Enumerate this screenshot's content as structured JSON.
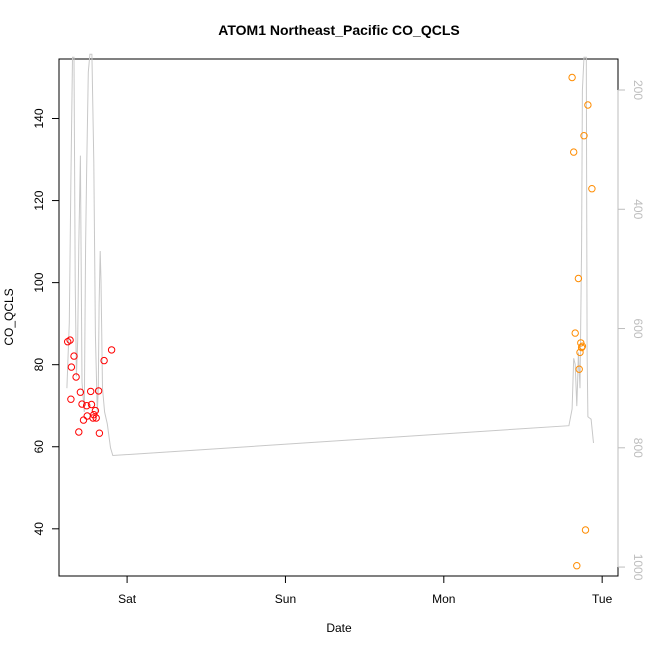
{
  "chart_data": {
    "type": "scatter",
    "title": "ATOM1 Northeast_Pacific CO_QCLS",
    "xlabel": "Date",
    "ylabel": "CO_QCLS",
    "x_tick_labels": [
      "Sat",
      "Sun",
      "Mon",
      "Tue"
    ],
    "x_tick_positions": [
      1.0,
      2.0,
      3.0,
      4.0
    ],
    "xlim": [
      0.57,
      4.1
    ],
    "ylim": [
      28.5,
      154.5
    ],
    "y_ticks": [
      40,
      60,
      80,
      100,
      120,
      140
    ],
    "y2_label": "",
    "y2_ticks": [
      200,
      400,
      600,
      800,
      1000
    ],
    "y2_lim": [
      1015,
      148
    ],
    "y2_reversed": true,
    "grid": false,
    "colors": {
      "series1": "#ff0000",
      "series2": "#ff8c00",
      "profile": "#c8c8c8",
      "axis": "#000000",
      "axis2": "#bdbdbd"
    },
    "series": [
      {
        "color": "#ff0000",
        "points": [
          [
            0.625,
            85.6
          ],
          [
            0.64,
            86.0
          ],
          [
            0.645,
            71.6
          ],
          [
            0.648,
            79.4
          ],
          [
            0.665,
            82.1
          ],
          [
            0.678,
            77.0
          ],
          [
            0.695,
            63.6
          ],
          [
            0.705,
            73.3
          ],
          [
            0.715,
            70.4
          ],
          [
            0.725,
            66.5
          ],
          [
            0.745,
            70.0
          ],
          [
            0.748,
            67.5
          ],
          [
            0.77,
            73.5
          ],
          [
            0.775,
            70.3
          ],
          [
            0.785,
            67.0
          ],
          [
            0.79,
            67.8
          ],
          [
            0.8,
            68.8
          ],
          [
            0.805,
            67.0
          ],
          [
            0.82,
            73.6
          ],
          [
            0.825,
            63.3
          ],
          [
            0.855,
            81.0
          ],
          [
            0.902,
            83.6
          ]
        ]
      },
      {
        "color": "#ff8c00",
        "points": [
          [
            3.81,
            150.0
          ],
          [
            3.82,
            131.8
          ],
          [
            3.83,
            87.7
          ],
          [
            3.84,
            31.0
          ],
          [
            3.85,
            101.0
          ],
          [
            3.855,
            78.9
          ],
          [
            3.86,
            83.0
          ],
          [
            3.865,
            85.3
          ],
          [
            3.87,
            84.2
          ],
          [
            3.875,
            84.5
          ],
          [
            3.885,
            135.8
          ],
          [
            3.895,
            39.7
          ],
          [
            3.91,
            143.3
          ],
          [
            3.935,
            122.9
          ]
        ]
      }
    ],
    "profile_line": {
      "color": "#c8c8c8",
      "axis": "y2",
      "points": [
        [
          0.62,
          700
        ],
        [
          0.635,
          590
        ],
        [
          0.645,
          350
        ],
        [
          0.655,
          145
        ],
        [
          0.665,
          145
        ],
        [
          0.672,
          520
        ],
        [
          0.68,
          680
        ],
        [
          0.688,
          620
        ],
        [
          0.695,
          460
        ],
        [
          0.705,
          310
        ],
        [
          0.715,
          690
        ],
        [
          0.73,
          740
        ],
        [
          0.738,
          460
        ],
        [
          0.745,
          330
        ],
        [
          0.755,
          170
        ],
        [
          0.765,
          140
        ],
        [
          0.778,
          140
        ],
        [
          0.79,
          320
        ],
        [
          0.8,
          610
        ],
        [
          0.808,
          700
        ],
        [
          0.812,
          740
        ],
        [
          0.818,
          700
        ],
        [
          0.823,
          560
        ],
        [
          0.83,
          470
        ],
        [
          0.835,
          520
        ],
        [
          0.845,
          700
        ],
        [
          0.858,
          740
        ],
        [
          0.875,
          760
        ],
        [
          0.895,
          800
        ],
        [
          0.91,
          813
        ],
        [
          3.79,
          763
        ],
        [
          3.81,
          735
        ],
        [
          3.82,
          650
        ],
        [
          3.83,
          660
        ],
        [
          3.84,
          730
        ],
        [
          3.845,
          690
        ],
        [
          3.85,
          640
        ],
        [
          3.86,
          700
        ],
        [
          3.87,
          460
        ],
        [
          3.875,
          200
        ],
        [
          3.885,
          145
        ],
        [
          3.9,
          145
        ],
        [
          3.905,
          640
        ],
        [
          3.91,
          748
        ],
        [
          3.92,
          750
        ],
        [
          3.93,
          752
        ],
        [
          3.945,
          792
        ]
      ]
    }
  }
}
